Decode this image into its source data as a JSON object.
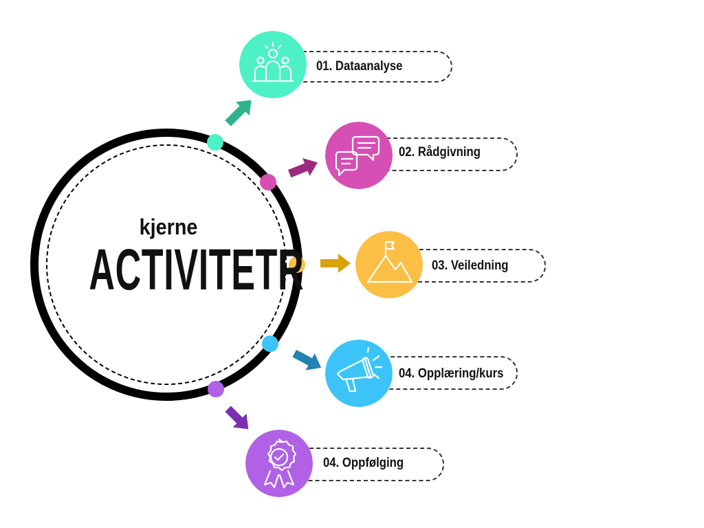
{
  "center": {
    "subtitle": "kjerne",
    "title": "ACTIVITETR"
  },
  "items": [
    {
      "label": "01. Dataanalyse",
      "color": "#4ef0c6",
      "arrow_color": "#2fb38f",
      "icon": "team-icon"
    },
    {
      "label": "02. Rådgivning",
      "color": "#d64fb5",
      "arrow_color": "#9b2a7f",
      "icon": "chat-bubbles-icon"
    },
    {
      "label": "03. Veiledning",
      "color": "#fbbf45",
      "arrow_color": "#d9a20a",
      "icon": "mountain-flag-icon"
    },
    {
      "label": "04. Opplæring/kurs",
      "color": "#3cc4f8",
      "arrow_color": "#2182b3",
      "icon": "megaphone-icon"
    },
    {
      "label": "04. Oppfølging",
      "color": "#b061e6",
      "arrow_color": "#7a2fb0",
      "icon": "award-badge-icon"
    }
  ]
}
